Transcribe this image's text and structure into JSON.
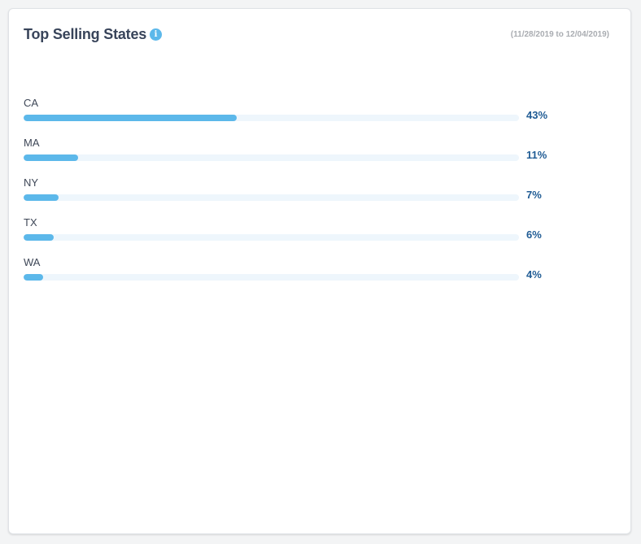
{
  "card": {
    "title": "Top Selling States",
    "date_range": "(11/28/2019 to 12/04/2019)",
    "info_icon": "info-icon"
  },
  "colors": {
    "bar_fill": "#5cb8ea",
    "bar_track": "#eef6fc",
    "percent_text": "#1f5b94",
    "title_text": "#38445a"
  },
  "chart_data": {
    "type": "bar",
    "orientation": "horizontal",
    "title": "Top Selling States",
    "subtitle": "(11/28/2019 to 12/04/2019)",
    "categories": [
      "CA",
      "MA",
      "NY",
      "TX",
      "WA"
    ],
    "values": [
      43,
      11,
      7,
      6,
      4
    ],
    "value_labels": [
      "43%",
      "11%",
      "7%",
      "6%",
      "4%"
    ],
    "xlim": [
      0,
      100
    ],
    "grid": false,
    "legend": "none"
  }
}
